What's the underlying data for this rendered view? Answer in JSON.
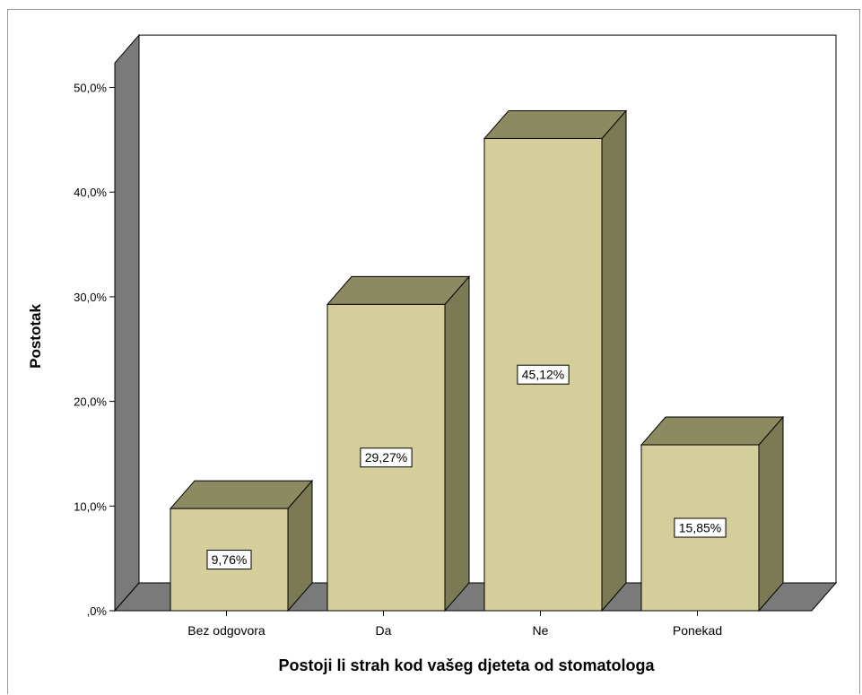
{
  "chart_data": {
    "type": "bar",
    "title": "",
    "xlabel": "Postoji li strah kod vašeg djeteta od stomatologa",
    "ylabel": "Postotak",
    "categories": [
      "Bez odgovora",
      "Da",
      "Ne",
      "Ponekad"
    ],
    "values": [
      9.76,
      29.27,
      45.12,
      15.85
    ],
    "data_labels": [
      "9,76%",
      "29,27%",
      "45,12%",
      "15,85%"
    ],
    "yticks": [
      ",0%",
      "10,0%",
      "20,0%",
      "30,0%",
      "40,0%",
      "50,0%"
    ],
    "ylim": [
      0,
      50
    ],
    "grid": false,
    "legend": "none",
    "style": "3d-bar",
    "colors": {
      "bar_front": "#d4ce9a",
      "bar_top": "#8c8a60",
      "bar_side": "#7b7a55",
      "wall": "#7a7a7a",
      "floor": "#7a7a7a",
      "outline": "#000000"
    }
  }
}
